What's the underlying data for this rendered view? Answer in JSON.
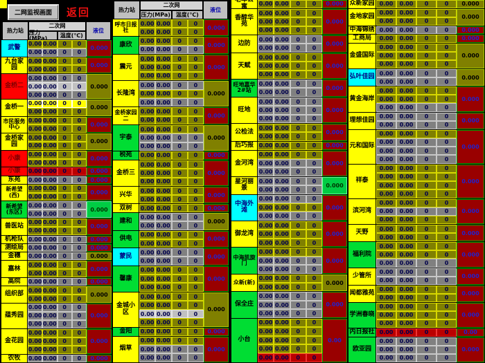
{
  "topbar": {
    "monitor_button": "二网监视画面",
    "back_link": "返回"
  },
  "columns": {
    "station": "热力站",
    "network": "二次网",
    "pressure": "压力(MPa)",
    "temperature": "温度(℃)",
    "level": "液位"
  },
  "values": {
    "pressure": "0.00",
    "temperature": "0"
  },
  "colors": {
    "accent_yellow": "#ffff00",
    "station_cyan": "#00ffff",
    "station_red": "#ff0000",
    "station_green": "#00dd33",
    "cell_olive": "#808000",
    "cell_gray": "#808080",
    "cell_lightgray": "#c0c0c0",
    "acc_darkred": "#990000",
    "acc_value_blue": "#2222cc"
  },
  "groups": [
    {
      "has_header": true,
      "stations": [
        {
          "name": "武警",
          "bg": "cyan",
          "rows": [
            "o",
            "g"
          ],
          "acc": {
            "text": "0.000",
            "c": "dr"
          }
        },
        {
          "name": "九台家园",
          "bg": "yellow",
          "rows": [
            "o",
            "o"
          ],
          "acc": {
            "text": "0.000",
            "c": "dr"
          }
        },
        {
          "name": "金桥二",
          "bg": "red",
          "rows": [
            "g",
            "lg",
            "g"
          ],
          "acc": {
            "text": "0.000",
            "c": "o"
          }
        },
        {
          "name": "金桥一",
          "bg": "yellow",
          "rows": [
            "y",
            "o"
          ],
          "acc": {
            "text": "0.000",
            "c": "o"
          }
        },
        {
          "name": "市民服务中心",
          "bg": "yellow",
          "rows": [
            "o",
            "o"
          ],
          "acc": {
            "text": "0.000",
            "c": "dr"
          }
        },
        {
          "name": "金桥家园",
          "bg": "yellow",
          "rows": [
            "o",
            "o"
          ],
          "acc": {
            "text": "0.000",
            "c": "o"
          }
        },
        {
          "name": "小康",
          "bg": "red",
          "rows": [
            "o",
            "o"
          ],
          "acc": {
            "text": "0.000",
            "c": "dr"
          }
        },
        {
          "name": "小康",
          "bg": "red",
          "rows": [
            "r"
          ],
          "acc": {
            "text": "0.000",
            "c": "dr"
          }
        },
        {
          "name": "东苑",
          "bg": "yellow",
          "rows": [
            "g"
          ],
          "acc": {
            "text": "0.000",
            "c": "dr"
          }
        },
        {
          "name": "新希望(西)",
          "bg": "yellow",
          "rows": [
            "o",
            "o"
          ],
          "acc": {
            "text": "0.000",
            "c": "dr"
          }
        },
        {
          "name": "新希望(东区)",
          "bg": "green",
          "rows": [
            "g",
            "g"
          ],
          "acc": {
            "text": "0.000",
            "c": "gn"
          }
        },
        {
          "name": "兽医站",
          "bg": "yellow",
          "rows": [
            "o",
            "o"
          ],
          "acc": {
            "text": "0.000",
            "c": "dr"
          }
        },
        {
          "name": "机枪队",
          "bg": "yellow",
          "rows": [
            "g"
          ],
          "acc": {
            "text": "0.000",
            "c": "dr"
          }
        },
        {
          "name": "测绘局",
          "bg": "yellow",
          "rows": [
            "g"
          ],
          "acc": {
            "text": "0.000",
            "c": "dr"
          }
        },
        {
          "name": "金穗",
          "bg": "yellow",
          "rows": [
            "g"
          ],
          "acc": {
            "text": "0.000",
            "c": "o"
          }
        },
        {
          "name": "嘉林",
          "bg": "yellow",
          "rows": [
            "o",
            "o"
          ],
          "acc": {
            "text": "0.000",
            "c": "dr"
          }
        },
        {
          "name": "高院",
          "bg": "yellow",
          "rows": [
            "g"
          ],
          "acc": {
            "text": "0.000",
            "c": "dr"
          }
        },
        {
          "name": "组织部",
          "bg": "yellow",
          "rows": [
            "o",
            "o"
          ],
          "acc": {
            "text": "0.000",
            "c": "o"
          }
        },
        {
          "name": "蕴秀园",
          "bg": "yellow",
          "rows": [
            "g",
            "g",
            "g"
          ],
          "acc": {
            "text": "0.000",
            "c": "dr"
          }
        },
        {
          "name": "金花园",
          "bg": "yellow",
          "rows": [
            "o",
            "o",
            "o"
          ],
          "acc": {
            "text": "0.000",
            "c": "dr"
          }
        },
        {
          "name": "农牧",
          "bg": "yellow",
          "rows": [
            "g"
          ],
          "acc": {
            "text": "0.000",
            "c": "dr"
          }
        }
      ]
    },
    {
      "has_header": true,
      "stations": [
        {
          "name": "呼市日报社",
          "bg": "yellow",
          "rows": [
            "o",
            "o"
          ],
          "acc": {
            "text": "0.000",
            "c": "dr"
          }
        },
        {
          "name": "康欣",
          "bg": "green",
          "rows": [
            "o",
            "g"
          ],
          "acc": {
            "text": "0.000",
            "c": "dr"
          }
        },
        {
          "name": "震元",
          "bg": "yellow",
          "rows": [
            "o",
            "o",
            "o"
          ],
          "acc": {
            "text": "0.000",
            "c": "dr"
          }
        },
        {
          "name": "长隆湾",
          "bg": "yellow",
          "rows": [
            "g",
            "o",
            "g"
          ],
          "acc": {
            "text": "0.000",
            "c": "o"
          }
        },
        {
          "name": "金桥家园二",
          "bg": "yellow",
          "rows": [
            "o",
            "o"
          ],
          "acc": {
            "text": "0.000",
            "c": "dr"
          }
        },
        {
          "name": "宇泰",
          "bg": "green",
          "rows": [
            "o",
            "g",
            "g"
          ],
          "acc": {
            "text": "0.000",
            "c": "o"
          }
        },
        {
          "name": "税苑",
          "bg": "green",
          "rows": [
            "o"
          ],
          "acc": {
            "text": "0.000",
            "c": "dr"
          }
        },
        {
          "name": "金桥三",
          "bg": "yellow",
          "rows": [
            "o",
            "o",
            "o"
          ],
          "acc": {
            "text": "0.000",
            "c": "dr"
          }
        },
        {
          "name": "兴华",
          "bg": "yellow",
          "rows": [
            "o",
            "o"
          ],
          "acc": {
            "text": "0.000",
            "c": "dr"
          }
        },
        {
          "name": "双树",
          "bg": "yellow",
          "rows": [
            "o"
          ],
          "acc": {
            "text": "0.000",
            "c": "dr"
          }
        },
        {
          "name": "建和",
          "bg": "green",
          "rows": [
            "g",
            "g"
          ],
          "acc": {
            "text": "0.000",
            "c": "o"
          }
        },
        {
          "name": "供电",
          "bg": "green",
          "rows": [
            "o",
            "o"
          ],
          "acc": {
            "text": "0.000",
            "c": "dr"
          }
        },
        {
          "name": "蒙民",
          "bg": "cyan",
          "rows": [
            "g",
            "g"
          ],
          "acc": {
            "text": "0.000",
            "c": "dr"
          }
        },
        {
          "name": "馨康",
          "bg": "green",
          "rows": [
            "o",
            "o",
            "o"
          ],
          "acc": {
            "text": "0.000",
            "c": "dr"
          }
        },
        {
          "name": "金城小区",
          "bg": "yellow",
          "rows": [
            "o",
            "o",
            "lg",
            "o"
          ],
          "acc": {
            "text": "0.000",
            "c": "o"
          }
        },
        {
          "name": "金阳",
          "bg": "green",
          "rows": [
            "o"
          ],
          "acc": {
            "text": "0.000",
            "c": "dr"
          }
        },
        {
          "name": "烟草",
          "bg": "yellow",
          "rows": [
            "o",
            "g",
            "g"
          ],
          "acc": {
            "text": "0.000",
            "c": "dr"
          }
        }
      ]
    },
    {
      "has_header": false,
      "stations": [
        {
          "name": "老年公寓",
          "bg": "yellow",
          "rows": [
            "o"
          ],
          "acc": {
            "text": "0.000",
            "c": "dr"
          }
        },
        {
          "name": "香醇华苑",
          "bg": "yellow",
          "rows": [
            "o",
            "o",
            "o"
          ],
          "acc": {
            "text": "0.000",
            "c": "dr"
          }
        },
        {
          "name": "边防",
          "bg": "yellow",
          "rows": [
            "g",
            "g"
          ],
          "acc": {
            "text": "0.000",
            "c": "dr"
          }
        },
        {
          "name": "天赋",
          "bg": "yellow",
          "rows": [
            "o",
            "o",
            "o"
          ],
          "acc": {
            "text": "0.000",
            "c": "dr"
          }
        },
        {
          "name": "旺地嘉华2#站",
          "bg": "green",
          "rows": [
            "g",
            "g"
          ],
          "acc": {
            "text": "0.000",
            "c": "dr"
          }
        },
        {
          "name": "旺地",
          "bg": "yellow",
          "rows": [
            "g",
            "g",
            "g"
          ],
          "acc": {
            "text": "0.000",
            "c": "dr"
          }
        },
        {
          "name": "公检法",
          "bg": "yellow",
          "rows": [
            "o",
            "o"
          ],
          "acc": {
            "text": "0.000",
            "c": "dr"
          }
        },
        {
          "name": "后巧报",
          "bg": "yellow",
          "rows": [
            "o"
          ],
          "acc": {
            "text": "0.000",
            "c": "dr"
          }
        },
        {
          "name": "金河湾",
          "bg": "yellow",
          "rows": [
            "o",
            "g",
            "g"
          ],
          "acc": {
            "text": "0.000",
            "c": "dr"
          }
        },
        {
          "name": "星河丽景",
          "bg": "yellow",
          "rows": [
            "g",
            "g"
          ],
          "acc": {
            "text": "0.000",
            "c": "gn"
          }
        },
        {
          "name": "中海外滩",
          "bg": "cyan",
          "rows": [
            "g",
            "o",
            "g"
          ],
          "acc": {
            "text": "0.000",
            "c": "dr"
          }
        },
        {
          "name": "御龙湾",
          "bg": "yellow",
          "rows": [
            "o",
            "o",
            "o"
          ],
          "acc": {
            "text": "0.000",
            "c": "dr"
          }
        },
        {
          "name": "中海凯旋门",
          "bg": "green",
          "rows": [
            "o",
            "g",
            "g"
          ],
          "acc": {
            "text": "0.000",
            "c": "dr"
          }
        },
        {
          "name": "众新(新)",
          "bg": "yellow",
          "rows": [
            "o",
            "o"
          ],
          "acc": {
            "text": "0.000",
            "c": "o"
          }
        },
        {
          "name": "保全庄",
          "bg": "green",
          "rows": [
            "g",
            "g",
            "g"
          ],
          "acc": {
            "text": "0.000",
            "c": "dr"
          }
        },
        {
          "name": "小台",
          "bg": "green",
          "rows": [
            "o",
            "o",
            "o",
            "o",
            "r"
          ],
          "acc": {
            "text": "0.00",
            "c": "dr"
          }
        }
      ]
    },
    {
      "has_header": false,
      "stations": [
        {
          "name": "众新家园",
          "bg": "yellow",
          "rows": [
            "o"
          ],
          "acc": {
            "text": "0.000",
            "c": "o"
          }
        },
        {
          "name": "金地家园",
          "bg": "yellow",
          "rows": [
            "o",
            "o"
          ],
          "acc": {
            "text": "0.000",
            "c": "o"
          }
        },
        {
          "name": "中海锦绣",
          "bg": "yellow",
          "rows": [
            "g"
          ],
          "acc": {
            "text": "0.000",
            "c": "dr"
          }
        },
        {
          "name": "工商局",
          "bg": "yellow",
          "rows": [
            "o"
          ],
          "acc": {
            "text": "0.000",
            "c": "dr"
          }
        },
        {
          "name": "金盛国际",
          "bg": "yellow",
          "rows": [
            "o",
            "o",
            "o"
          ],
          "acc": {
            "text": "0.000",
            "c": "o"
          }
        },
        {
          "name": "弘叶佳园",
          "bg": "cyan",
          "rows": [
            "g",
            "g"
          ],
          "acc": {
            "text": "0.000",
            "c": "o"
          }
        },
        {
          "name": "黄金海岸",
          "bg": "yellow",
          "rows": [
            "o",
            "o",
            "g"
          ],
          "acc": {
            "text": "0.000",
            "c": "dr"
          }
        },
        {
          "name": "理想佳园",
          "bg": "yellow",
          "rows": [
            "g",
            "g"
          ],
          "acc": {
            "text": "0.000",
            "c": "dr"
          }
        },
        {
          "name": "元和国际",
          "bg": "yellow",
          "rows": [
            "o",
            "g",
            "g",
            "g"
          ],
          "acc": {
            "text": "0.000",
            "c": "dr"
          }
        },
        {
          "name": "祥泰",
          "bg": "yellow",
          "rows": [
            "o",
            "o",
            "o",
            "o"
          ],
          "acc": {
            "text": "0.000",
            "c": "dr"
          }
        },
        {
          "name": "滨河湾",
          "bg": "yellow",
          "rows": [
            "o",
            "g",
            "o"
          ],
          "acc": {
            "text": "0.000",
            "c": "dr"
          }
        },
        {
          "name": "天野",
          "bg": "yellow",
          "rows": [
            "o",
            "o"
          ],
          "acc": {
            "text": "0.000",
            "c": "dr"
          }
        },
        {
          "name": "福利院",
          "bg": "green",
          "rows": [
            "o",
            "o",
            "g"
          ],
          "acc": {
            "text": "0.000",
            "c": "dr"
          }
        },
        {
          "name": "少管所",
          "bg": "yellow",
          "rows": [
            "g",
            "g"
          ],
          "acc": {
            "text": "0.000",
            "c": "dr"
          }
        },
        {
          "name": "闻都雅苑",
          "bg": "yellow",
          "rows": [
            "o",
            "o"
          ],
          "acc": {
            "text": "0.000",
            "c": "dr"
          }
        },
        {
          "name": "学洲春晓",
          "bg": "green",
          "rows": [
            "o",
            "o",
            "o"
          ],
          "acc": {
            "text": "0.000",
            "c": "dr"
          }
        },
        {
          "name": "内日报社",
          "bg": "green",
          "rows": [
            "r"
          ],
          "acc": {
            "text": "0.00",
            "c": "dr"
          }
        },
        {
          "name": "欧亚园",
          "bg": "green",
          "rows": [
            "g",
            "g",
            "g"
          ],
          "acc": {
            "text": "0.000",
            "c": "dr"
          }
        }
      ]
    }
  ]
}
